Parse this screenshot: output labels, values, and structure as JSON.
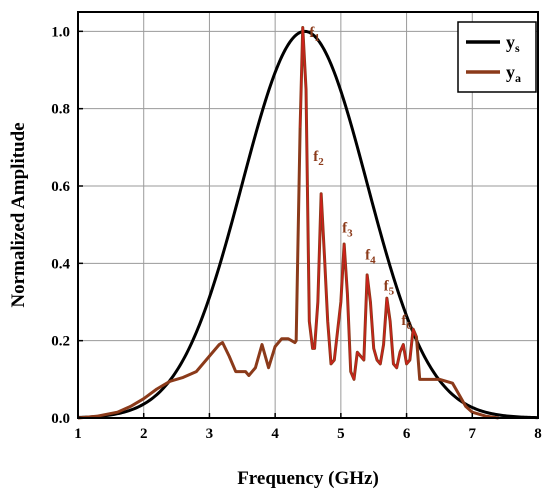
{
  "chart_data": {
    "type": "line",
    "title": "",
    "xlabel": "Frequency (GHz)",
    "ylabel": "Normalized Amplitude",
    "xlim": [
      1,
      8
    ],
    "ylim": [
      0,
      1.05
    ],
    "x_ticks": [
      1,
      2,
      3,
      4,
      5,
      6,
      7,
      8
    ],
    "y_ticks": [
      0.0,
      0.2,
      0.4,
      0.6,
      0.8,
      1.0
    ],
    "x_tick_labels": [
      "1",
      "2",
      "3",
      "4",
      "5",
      "6",
      "7",
      "8"
    ],
    "y_tick_labels": [
      "0.0",
      "0.2",
      "0.4",
      "0.6",
      "0.8",
      "1.0"
    ],
    "grid": true,
    "legend_position": "top-right",
    "series": [
      {
        "name": "ys",
        "name_main": "y",
        "name_sub": "s",
        "color": "#000000",
        "gaussian": {
          "center": 4.45,
          "amplitude": 1.0,
          "sigma": 0.95
        }
      },
      {
        "name": "ya",
        "name_main": "y",
        "name_sub": "a",
        "color": "#8B3A1A",
        "peak_color": "#D0201C",
        "x": [
          1.0,
          1.3,
          1.6,
          1.8,
          2.0,
          2.2,
          2.4,
          2.6,
          2.8,
          2.95,
          3.05,
          3.15,
          3.2,
          3.3,
          3.4,
          3.55,
          3.6,
          3.7,
          3.8,
          3.9,
          4.0,
          4.1,
          4.2,
          4.3,
          4.32,
          4.38,
          4.42,
          4.47,
          4.52,
          4.57,
          4.6,
          4.65,
          4.7,
          4.75,
          4.8,
          4.85,
          4.9,
          5.0,
          5.05,
          5.1,
          5.15,
          5.2,
          5.25,
          5.35,
          5.4,
          5.45,
          5.5,
          5.55,
          5.6,
          5.65,
          5.7,
          5.75,
          5.8,
          5.85,
          5.9,
          5.95,
          6.0,
          6.05,
          6.1,
          6.15,
          6.2,
          6.3,
          6.5,
          6.7,
          6.8,
          6.9,
          7.0,
          7.2,
          7.4
        ],
        "y": [
          0.0,
          0.005,
          0.015,
          0.03,
          0.05,
          0.075,
          0.095,
          0.105,
          0.12,
          0.15,
          0.17,
          0.19,
          0.195,
          0.16,
          0.12,
          0.12,
          0.11,
          0.13,
          0.19,
          0.13,
          0.185,
          0.205,
          0.205,
          0.195,
          0.2,
          0.75,
          1.01,
          0.85,
          0.25,
          0.18,
          0.18,
          0.3,
          0.58,
          0.42,
          0.25,
          0.14,
          0.15,
          0.3,
          0.45,
          0.32,
          0.12,
          0.1,
          0.17,
          0.15,
          0.37,
          0.3,
          0.18,
          0.15,
          0.14,
          0.19,
          0.31,
          0.25,
          0.14,
          0.13,
          0.17,
          0.19,
          0.14,
          0.15,
          0.23,
          0.21,
          0.1,
          0.1,
          0.1,
          0.09,
          0.06,
          0.03,
          0.015,
          0.005,
          0.0
        ]
      }
    ],
    "annotations": [
      {
        "main": "f",
        "sub": "1",
        "x": 4.52,
        "y": 0.985
      },
      {
        "main": "f",
        "sub": "2",
        "x": 4.58,
        "y": 0.665
      },
      {
        "main": "f",
        "sub": "3",
        "x": 5.02,
        "y": 0.48
      },
      {
        "main": "f",
        "sub": "4",
        "x": 5.37,
        "y": 0.41
      },
      {
        "main": "f",
        "sub": "5",
        "x": 5.65,
        "y": 0.33
      },
      {
        "main": "f",
        "sub": "6",
        "x": 5.92,
        "y": 0.24
      }
    ]
  }
}
